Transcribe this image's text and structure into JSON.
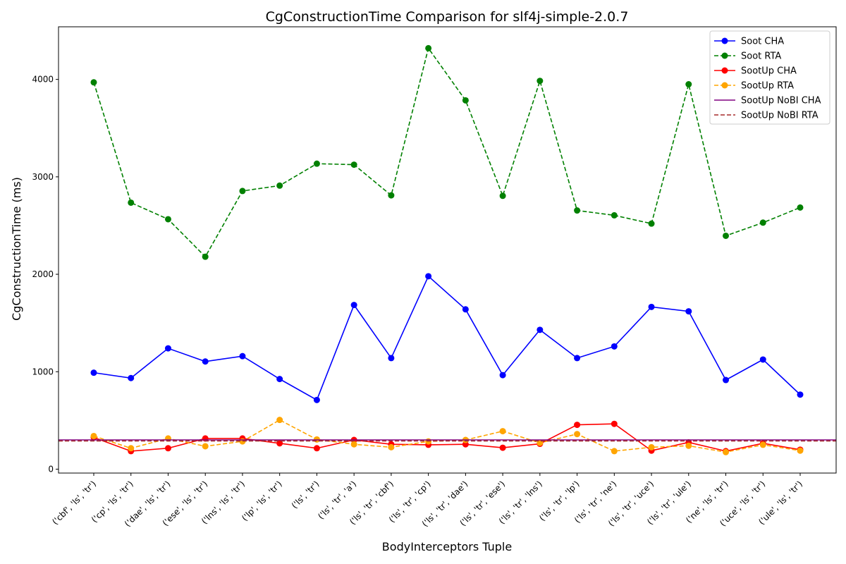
{
  "chart_data": {
    "type": "line",
    "title": "CgConstructionTime Comparison for slf4j-simple-2.0.7",
    "xlabel": "BodyInterceptors Tuple",
    "ylabel": "CgConstructionTime (ms)",
    "ylim": [
      -40,
      4540
    ],
    "yticks": [
      0,
      1000,
      2000,
      3000,
      4000
    ],
    "grid": false,
    "legend_position": "top-right",
    "categories": [
      "('cbf', 'ls', 'tr')",
      "('cp', 'ls', 'tr')",
      "('dae', 'ls', 'tr')",
      "('ese', 'ls', 'tr')",
      "('lns', 'ls', 'tr')",
      "('lp', 'ls', 'tr')",
      "('ls', 'tr')",
      "('ls', 'tr', 'a')",
      "('ls', 'tr', 'cbf')",
      "('ls', 'tr', 'cp')",
      "('ls', 'tr', 'dae')",
      "('ls', 'tr', 'ese')",
      "('ls', 'tr', 'lns')",
      "('ls', 'tr', 'lp')",
      "('ls', 'tr', 'ne')",
      "('ls', 'tr', 'uce')",
      "('ls', 'tr', 'ule')",
      "('ne', 'ls', 'tr')",
      "('uce', 'ls', 'tr')",
      "('ule', 'ls', 'tr')"
    ],
    "series": [
      {
        "name": "Soot CHA",
        "color": "#0000ff",
        "style": "solid",
        "markers": true,
        "values": [
          990,
          935,
          1240,
          1105,
          1160,
          925,
          710,
          1685,
          1140,
          1980,
          1640,
          965,
          1430,
          1140,
          1260,
          1665,
          1620,
          915,
          1125,
          765
        ]
      },
      {
        "name": "Soot RTA",
        "color": "#008000",
        "style": "dashed",
        "markers": true,
        "values": [
          3970,
          2735,
          2565,
          2180,
          2855,
          2910,
          3135,
          3125,
          2810,
          4320,
          3785,
          2805,
          3985,
          2655,
          2605,
          2520,
          3950,
          2395,
          2530,
          2685
        ]
      },
      {
        "name": "SootUp CHA",
        "color": "#ff0000",
        "style": "solid",
        "markers": true,
        "values": [
          325,
          185,
          215,
          315,
          315,
          265,
          215,
          300,
          255,
          250,
          255,
          220,
          260,
          455,
          465,
          190,
          275,
          185,
          265,
          200
        ]
      },
      {
        "name": "SootUp RTA",
        "color": "#ffa500",
        "style": "dashed",
        "markers": true,
        "values": [
          340,
          215,
          315,
          235,
          285,
          505,
          305,
          255,
          225,
          285,
          300,
          390,
          270,
          360,
          185,
          225,
          240,
          175,
          250,
          190
        ]
      },
      {
        "name": "SootUp NoBI CHA",
        "color": "#800080",
        "style": "solid",
        "markers": false,
        "constant": 300
      },
      {
        "name": "SootUp NoBI RTA",
        "color": "#a52a2a",
        "style": "dashed",
        "markers": false,
        "constant": 290
      }
    ]
  }
}
